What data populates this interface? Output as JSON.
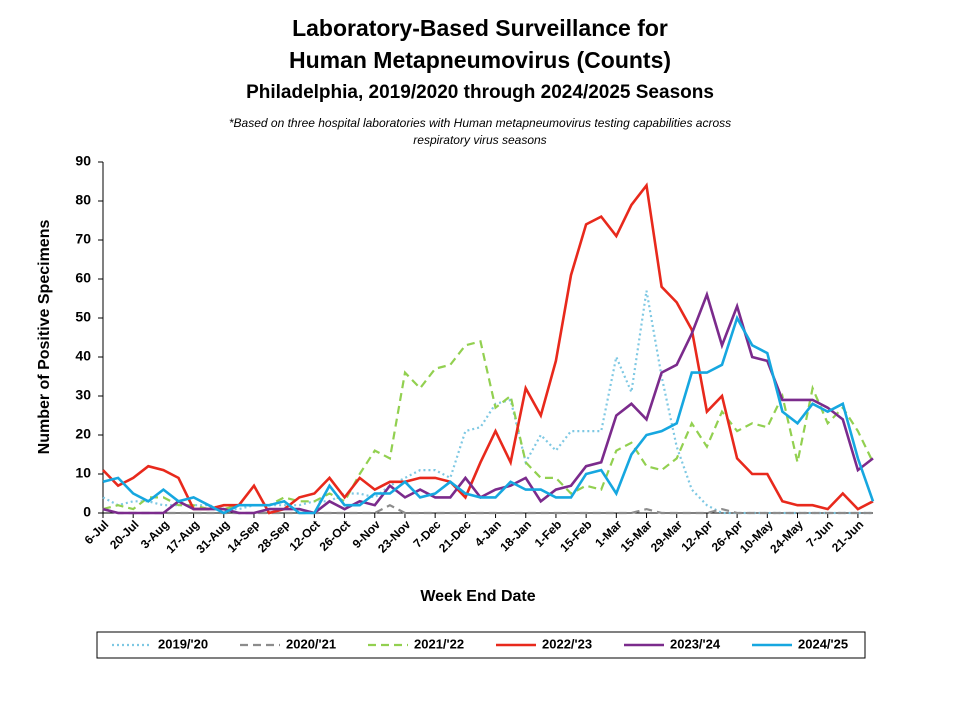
{
  "chart_data": {
    "type": "line",
    "title": [
      "Laboratory-Based Surveillance for",
      "Human Metapneumovirus (Counts)"
    ],
    "subtitle": "Philadelphia, 2019/2020 through 2024/2025 Seasons",
    "note": [
      "*Based on three hospital laboratories with Human metapneumovirus testing capabilities across",
      "respiratory virus seasons"
    ],
    "x_label": "Week End Date",
    "y_label": "Number of Positive Specimens",
    "categories": [
      "6-Jul",
      null,
      "20-Jul",
      null,
      "3-Aug",
      null,
      "17-Aug",
      null,
      "31-Aug",
      null,
      "14-Sep",
      null,
      "28-Sep",
      null,
      "12-Oct",
      null,
      "26-Oct",
      null,
      "9-Nov",
      null,
      "23-Nov",
      null,
      "7-Dec",
      null,
      "21-Dec",
      null,
      "4-Jan",
      null,
      "18-Jan",
      null,
      "1-Feb",
      null,
      "15-Feb",
      null,
      "1-Mar",
      null,
      "15-Mar",
      null,
      "29-Mar",
      null,
      "12-Apr",
      null,
      "26-Apr",
      null,
      "10-May",
      null,
      "24-May",
      null,
      "7-Jun",
      null,
      "21-Jun",
      null
    ],
    "ylim": [
      0,
      90
    ],
    "yticks": [
      0,
      10,
      20,
      30,
      40,
      50,
      60,
      70,
      80,
      90
    ],
    "grid": false,
    "legend": "bottom",
    "series": [
      {
        "name": "2019/'20",
        "color": "#7ec8e3",
        "style": "dotted",
        "values": [
          4,
          2,
          3,
          3,
          2,
          2,
          2,
          2,
          1,
          1,
          2,
          2,
          2,
          2,
          3,
          3,
          5,
          5,
          4,
          7,
          9,
          11,
          11,
          9,
          21,
          22,
          28,
          29,
          13,
          20,
          16,
          21,
          21,
          21,
          40,
          31,
          57,
          35,
          17,
          6,
          2,
          0,
          0,
          0,
          0,
          0,
          0,
          0,
          0,
          0,
          0,
          0
        ]
      },
      {
        "name": "2020/'21",
        "color": "#8c8c8c",
        "style": "dashed",
        "values": [
          1,
          0,
          0,
          0,
          0,
          0,
          0,
          0,
          0,
          0,
          0,
          0,
          0,
          0,
          0,
          0,
          0,
          0,
          0,
          2,
          0,
          0,
          0,
          0,
          0,
          0,
          0,
          0,
          0,
          0,
          0,
          0,
          0,
          0,
          0,
          0,
          1,
          0,
          0,
          0,
          0,
          1,
          0,
          0,
          0,
          0,
          0,
          0,
          0,
          0,
          0,
          0
        ]
      },
      {
        "name": "2021/'22",
        "color": "#92d050",
        "style": "dashed",
        "values": [
          1,
          2,
          1,
          4,
          4,
          2,
          2,
          1,
          1,
          2,
          2,
          2,
          4,
          3,
          3,
          5,
          3,
          10,
          16,
          14,
          36,
          32,
          37,
          38,
          43,
          44,
          27,
          30,
          13,
          9,
          9,
          5,
          7,
          6,
          16,
          18,
          12,
          11,
          14,
          23,
          17,
          26,
          21,
          23,
          22,
          30,
          13,
          32,
          23,
          27,
          21,
          13
        ]
      },
      {
        "name": "2022/'23",
        "color": "#e8291c",
        "style": "solid",
        "values": [
          11,
          7,
          9,
          12,
          11,
          9,
          1,
          1,
          2,
          2,
          7,
          0,
          1,
          4,
          5,
          9,
          4,
          9,
          6,
          8,
          8,
          9,
          9,
          8,
          4,
          13,
          21,
          13,
          32,
          25,
          39,
          61,
          74,
          76,
          71,
          79,
          84,
          58,
          54,
          47,
          26,
          30,
          14,
          10,
          10,
          3,
          2,
          2,
          1,
          5,
          1,
          3
        ]
      },
      {
        "name": "2023/'24",
        "color": "#7b2b8c",
        "style": "solid",
        "values": [
          1,
          0,
          0,
          0,
          0,
          3,
          1,
          1,
          1,
          0,
          0,
          1,
          1,
          1,
          0,
          3,
          1,
          3,
          2,
          7,
          4,
          6,
          4,
          4,
          9,
          4,
          6,
          7,
          9,
          3,
          6,
          7,
          12,
          13,
          25,
          28,
          24,
          36,
          38,
          46,
          56,
          43,
          53,
          40,
          39,
          29,
          29,
          29,
          27,
          24,
          11,
          14
        ]
      },
      {
        "name": "2024/'25",
        "color": "#16a7e0",
        "style": "solid",
        "values": [
          8,
          9,
          5,
          3,
          6,
          3,
          4,
          2,
          0,
          2,
          2,
          2,
          3,
          0,
          0,
          7,
          2,
          2,
          5,
          5,
          8,
          4,
          5,
          8,
          5,
          4,
          4,
          8,
          6,
          6,
          4,
          4,
          10,
          11,
          5,
          15,
          20,
          21,
          23,
          36,
          36,
          38,
          50,
          43,
          41,
          26,
          23,
          28,
          26,
          28,
          14,
          3
        ]
      }
    ]
  }
}
